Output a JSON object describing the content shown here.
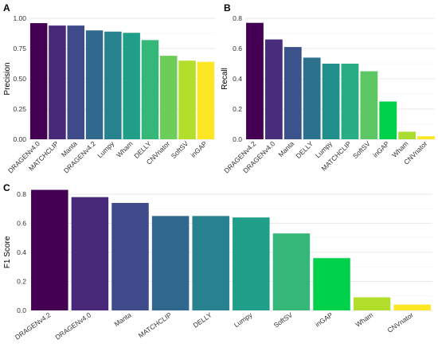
{
  "chart_data": [
    {
      "panel": "A",
      "type": "bar",
      "ylabel": "Precision",
      "ylim": [
        0,
        1.0
      ],
      "yticks": [
        "0.00",
        "0.25",
        "0.50",
        "0.75",
        "1.00"
      ],
      "ytick_values": [
        0,
        0.25,
        0.5,
        0.75,
        1.0
      ],
      "categories": [
        "DRAGENv4.0",
        "MATCHCLIP",
        "Manta",
        "DRAGENv4.2",
        "Lumpy",
        "Wham",
        "DELLY",
        "CNVnator",
        "SoftSV",
        "inGAP"
      ],
      "values": [
        0.96,
        0.94,
        0.94,
        0.9,
        0.89,
        0.88,
        0.82,
        0.69,
        0.65,
        0.64
      ],
      "colors": [
        "#440154",
        "#482878",
        "#3E4A89",
        "#31688E",
        "#26828E",
        "#1F9E89",
        "#35B779",
        "#6DCD59",
        "#B4DE2C",
        "#FDE725"
      ]
    },
    {
      "panel": "B",
      "type": "bar",
      "ylabel": "Recall",
      "ylim": [
        0,
        0.8
      ],
      "yticks": [
        "0.0",
        "0.2",
        "0.4",
        "0.6",
        "0.8"
      ],
      "ytick_values": [
        0,
        0.2,
        0.4,
        0.6,
        0.8
      ],
      "categories": [
        "DRAGENv4.2",
        "DRAGENv4.0",
        "Manta",
        "DELLY",
        "Lumpy",
        "MATCHCLIP",
        "SoftSV",
        "inGAP",
        "Wham",
        "CNVnator"
      ],
      "values": [
        0.77,
        0.66,
        0.61,
        0.54,
        0.5,
        0.5,
        0.45,
        0.25,
        0.05,
        0.02
      ],
      "colors": [
        "#440154",
        "#472D7B",
        "#3B528B",
        "#2C728E",
        "#21908C",
        "#27AD81",
        "#5DC863",
        "#00D14B",
        "#AADC32",
        "#FDE725"
      ]
    },
    {
      "panel": "C",
      "type": "bar",
      "ylabel": "F1 Score",
      "ylim": [
        0,
        0.8
      ],
      "yticks": [
        "0.0",
        "0.2",
        "0.4",
        "0.6",
        "0.8"
      ],
      "ytick_values": [
        0,
        0.2,
        0.4,
        0.6,
        0.8
      ],
      "categories": [
        "DRAGENv4.2",
        "DRAGENv4.0",
        "Manta",
        "MATCHCLIP",
        "DELLY",
        "Lumpy",
        "SoftSV",
        "inGAP",
        "Wham",
        "CNVnator"
      ],
      "values": [
        0.83,
        0.78,
        0.74,
        0.65,
        0.65,
        0.64,
        0.53,
        0.36,
        0.09,
        0.04
      ],
      "colors": [
        "#440154",
        "#482878",
        "#3E4A89",
        "#31688E",
        "#26828E",
        "#1F9E89",
        "#35B779",
        "#00D14B",
        "#B4DE2C",
        "#FDE725"
      ]
    }
  ],
  "grid": true
}
